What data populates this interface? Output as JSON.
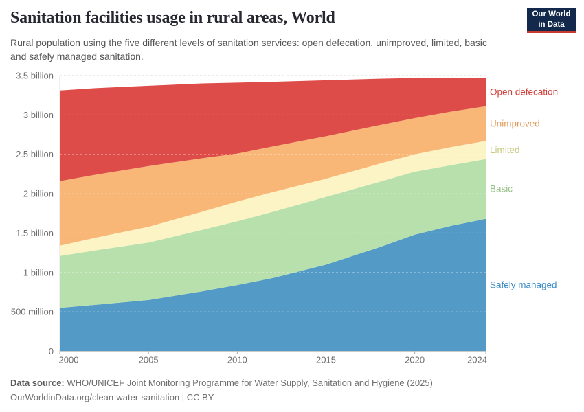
{
  "header": {
    "title": "Sanitation facilities usage in rural areas, World",
    "subtitle": "Rural population using the five different levels of sanitation services: open defecation, unimproved, limited, basic and safely managed sanitation."
  },
  "logo": {
    "line1": "Our World",
    "line2": "in Data",
    "bg": "#12294b",
    "accent": "#c8392f"
  },
  "footer": {
    "source_label": "Data source:",
    "source_text": " WHO/UNICEF Joint Monitoring Programme for Water Supply, Sanitation and Hygiene (2025)",
    "license_text": "OurWorldinData.org/clean-water-sanitation | CC BY"
  },
  "chart_data": {
    "type": "area",
    "stacked": true,
    "unit": "people",
    "x": [
      2000,
      2002,
      2005,
      2008,
      2010,
      2012,
      2015,
      2018,
      2020,
      2022,
      2024
    ],
    "series": [
      {
        "name": "Safely managed",
        "color": "#539ac6",
        "label_color": "#3a8cc3",
        "values_billions": [
          0.55,
          0.59,
          0.65,
          0.76,
          0.84,
          0.93,
          1.1,
          1.32,
          1.48,
          1.59,
          1.68
        ]
      },
      {
        "name": "Basic",
        "color": "#b8e0ad",
        "label_color": "#94c086",
        "values_billions": [
          0.66,
          0.69,
          0.73,
          0.78,
          0.81,
          0.84,
          0.86,
          0.83,
          0.8,
          0.77,
          0.76
        ]
      },
      {
        "name": "Limited",
        "color": "#fcf4c4",
        "label_color": "#c8ca80",
        "values_billions": [
          0.13,
          0.16,
          0.2,
          0.23,
          0.25,
          0.25,
          0.23,
          0.23,
          0.22,
          0.23,
          0.23
        ]
      },
      {
        "name": "Unimproved",
        "color": "#f8b777",
        "label_color": "#df9c5f",
        "values_billions": [
          0.82,
          0.8,
          0.77,
          0.68,
          0.61,
          0.58,
          0.54,
          0.49,
          0.46,
          0.45,
          0.44
        ]
      },
      {
        "name": "Open defecation",
        "color": "#de4c49",
        "label_color": "#d0403a",
        "values_billions": [
          1.15,
          1.1,
          1.02,
          0.95,
          0.9,
          0.82,
          0.71,
          0.59,
          0.51,
          0.43,
          0.36
        ]
      }
    ],
    "yticks": [
      {
        "v": 0,
        "label": "0"
      },
      {
        "v": 0.5,
        "label": "500 million"
      },
      {
        "v": 1,
        "label": "1 billion"
      },
      {
        "v": 1.5,
        "label": "1.5 billion"
      },
      {
        "v": 2,
        "label": "2 billion"
      },
      {
        "v": 2.5,
        "label": "2.5 billion"
      },
      {
        "v": 3,
        "label": "3 billion"
      },
      {
        "v": 3.5,
        "label": "3.5 billion"
      }
    ],
    "xticks": [
      2000,
      2005,
      2010,
      2015,
      2020,
      2024
    ],
    "xlim": [
      2000,
      2024
    ],
    "ylim": [
      0,
      3.5
    ],
    "grid": true,
    "legend_position": "right"
  }
}
